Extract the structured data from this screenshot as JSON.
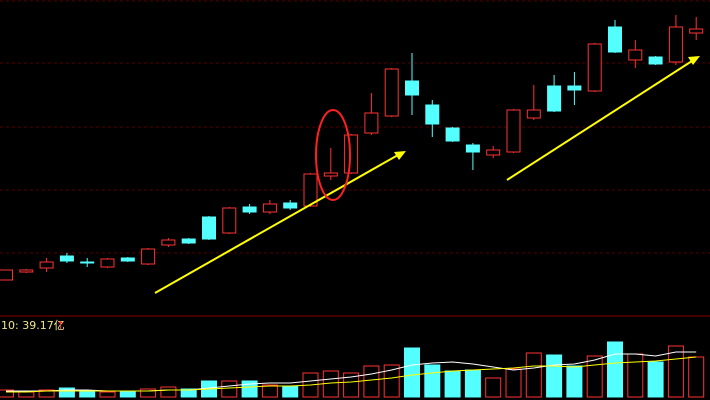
{
  "chart_data": {
    "type": "candlestick",
    "up_color": "#ff3232",
    "down_color": "#54ffff",
    "open": [
      35,
      43,
      47,
      59,
      53,
      48,
      57,
      51,
      70,
      76,
      98,
      82,
      108,
      103,
      112,
      109,
      139,
      142,
      182,
      199,
      234,
      210,
      187,
      170,
      160,
      163,
      197,
      229,
      229,
      224,
      288,
      255,
      258,
      253,
      282
    ],
    "close": [
      45,
      45,
      53,
      54,
      52,
      56,
      54,
      66,
      75,
      72,
      76,
      107,
      103,
      111,
      107,
      141,
      142,
      180,
      202,
      246,
      220,
      191,
      174,
      163,
      165,
      205,
      205,
      204,
      225,
      271,
      263,
      265,
      251,
      288,
      286
    ],
    "high": [
      45,
      46,
      57,
      62,
      57,
      57,
      58,
      67,
      77,
      77,
      99,
      108,
      111,
      115,
      115,
      142,
      167,
      181,
      222,
      247,
      262,
      215,
      188,
      172,
      169,
      206,
      230,
      240,
      243,
      272,
      295,
      275,
      259,
      300,
      298
    ],
    "low": [
      35,
      42,
      43,
      52,
      48,
      47,
      53,
      50,
      68,
      71,
      75,
      81,
      101,
      101,
      105,
      108,
      135,
      141,
      180,
      198,
      200,
      178,
      173,
      145,
      157,
      162,
      195,
      203,
      210,
      223,
      262,
      247,
      250,
      250,
      275
    ],
    "ylim": [
      0,
      315
    ],
    "volume": [
      7,
      5,
      7,
      9,
      5,
      5,
      6,
      8,
      10,
      8,
      16,
      16,
      16,
      12,
      11,
      24,
      26,
      24,
      31,
      32,
      49,
      32,
      26,
      27,
      19,
      28,
      44,
      42,
      31,
      41,
      55,
      43,
      35,
      51,
      40
    ],
    "volume_ylim": [
      0,
      60
    ],
    "volume_ma": [
      {
        "color": "#ffffff",
        "values": [
          6,
          6,
          6,
          7,
          7,
          6,
          6,
          6,
          7,
          7,
          9,
          11,
          13,
          14,
          14,
          16,
          18,
          20,
          23,
          27,
          32,
          34,
          35,
          33,
          30,
          27,
          29,
          32,
          33,
          37,
          43,
          43,
          41,
          45,
          45
        ]
      },
      {
        "color": "#ffff00",
        "values": [
          5,
          5,
          6,
          6,
          6,
          6,
          6,
          6,
          7,
          7,
          8,
          9,
          10,
          11,
          11,
          12,
          14,
          15,
          17,
          19,
          22,
          24,
          26,
          27,
          28,
          29,
          31,
          31,
          30,
          32,
          34,
          35,
          36,
          38,
          40
        ]
      }
    ],
    "volume_label": "10: 39.17亿",
    "volume_arrow": "↑"
  }
}
